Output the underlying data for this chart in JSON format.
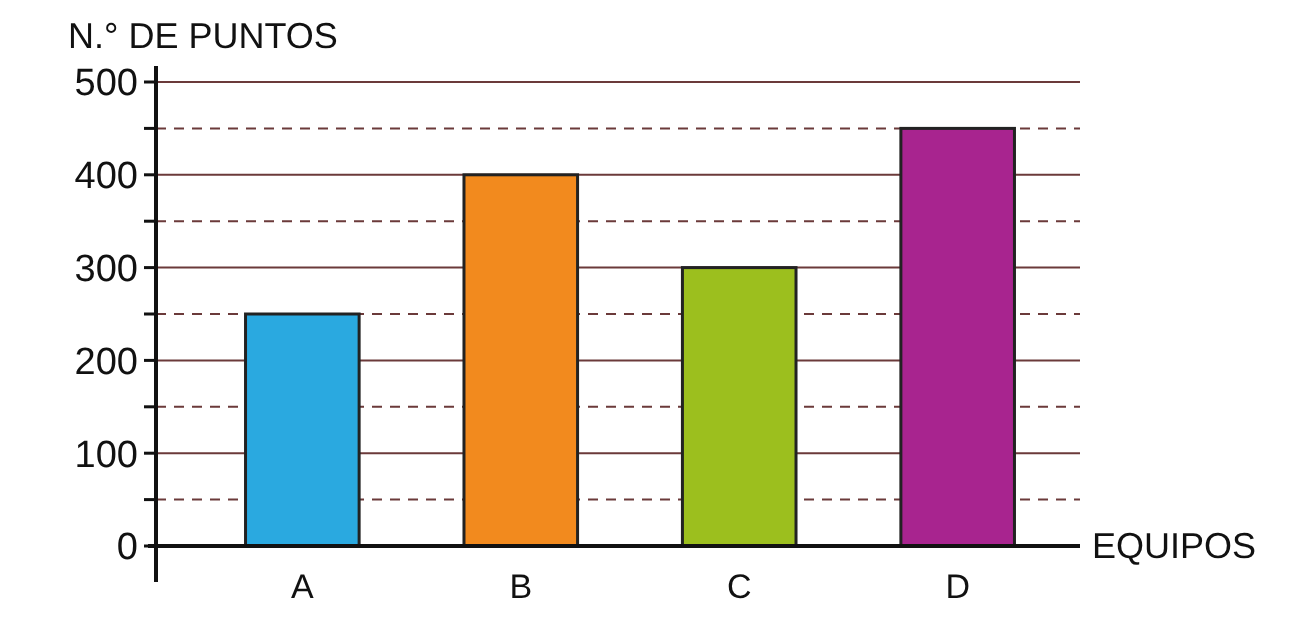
{
  "chart_data": {
    "type": "bar",
    "xlabel": "EQUIPOS",
    "ylabel": "N.° DE PUNTOS",
    "categories": [
      "A",
      "B",
      "C",
      "D"
    ],
    "values": [
      250,
      400,
      300,
      450
    ],
    "colors": [
      "#2aa9e0",
      "#f28a1e",
      "#9cbf1e",
      "#a8248f"
    ],
    "ylim": [
      0,
      500
    ],
    "yticks": [
      0,
      {
        "value": 50,
        "label": null
      },
      100,
      {
        "value": 150,
        "label": null
      },
      200,
      {
        "value": 250,
        "label": null
      },
      300,
      {
        "value": 350,
        "label": null
      },
      400,
      {
        "value": 450,
        "label": null
      },
      500
    ],
    "grid": "y"
  }
}
